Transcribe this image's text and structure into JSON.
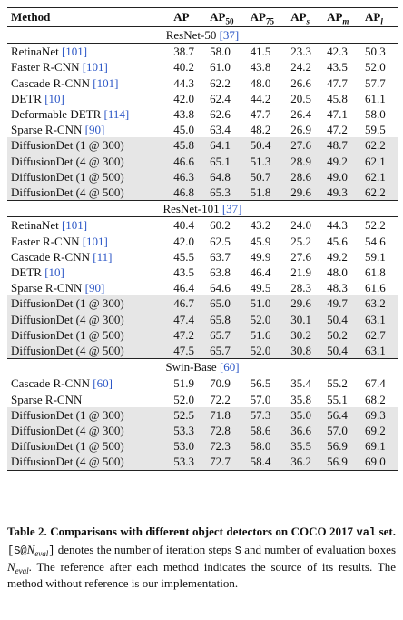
{
  "table": {
    "header": [
      {
        "text": "Method"
      },
      {
        "text": "AP"
      },
      {
        "text": "AP",
        "sub": "50"
      },
      {
        "text": "AP",
        "sub": "75"
      },
      {
        "text": "AP",
        "sub": "s"
      },
      {
        "text": "AP",
        "sub": "m"
      },
      {
        "text": "AP",
        "sub": "l"
      }
    ],
    "sections": [
      {
        "name": "ResNet-50",
        "ref": "[37]",
        "rows": [
          {
            "method": "RetinaNet",
            "ref": "[101]",
            "cells": [
              "38.7",
              "58.0",
              "41.5",
              "23.3",
              "42.3",
              "50.3"
            ]
          },
          {
            "method": "Faster R-CNN",
            "ref": "[101]",
            "cells": [
              "40.2",
              "61.0",
              "43.8",
              "24.2",
              "43.5",
              "52.0"
            ]
          },
          {
            "method": "Cascade R-CNN",
            "ref": "[101]",
            "cells": [
              "44.3",
              "62.2",
              "48.0",
              "26.6",
              "47.7",
              "57.7"
            ]
          },
          {
            "method": "DETR",
            "ref": "[10]",
            "cells": [
              "42.0",
              "62.4",
              "44.2",
              "20.5",
              "45.8",
              "61.1"
            ]
          },
          {
            "method": "Deformable DETR",
            "ref": "[114]",
            "cells": [
              "43.8",
              "62.6",
              "47.7",
              "26.4",
              "47.1",
              "58.0"
            ]
          },
          {
            "method": "Sparse R-CNN",
            "ref": "[90]",
            "cells": [
              "45.0",
              "63.4",
              "48.2",
              "26.9",
              "47.2",
              "59.5"
            ]
          },
          {
            "method": "DiffusionDet (1 @ 300)",
            "highlight": true,
            "cells": [
              "45.8",
              "64.1",
              "50.4",
              "27.6",
              "48.7",
              "62.2"
            ]
          },
          {
            "method": "DiffusionDet (4 @ 300)",
            "highlight": true,
            "cells": [
              "46.6",
              "65.1",
              "51.3",
              "28.9",
              "49.2",
              "62.1"
            ]
          },
          {
            "method": "DiffusionDet (1 @ 500)",
            "highlight": true,
            "cells": [
              "46.3",
              "64.8",
              "50.7",
              "28.6",
              "49.0",
              "62.1"
            ]
          },
          {
            "method": "DiffusionDet (4 @ 500)",
            "highlight": true,
            "cells": [
              "46.8",
              "65.3",
              "51.8",
              "29.6",
              "49.3",
              "62.2"
            ]
          }
        ]
      },
      {
        "name": "ResNet-101",
        "ref": "[37]",
        "rows": [
          {
            "method": "RetinaNet",
            "ref": "[101]",
            "cells": [
              "40.4",
              "60.2",
              "43.2",
              "24.0",
              "44.3",
              "52.2"
            ]
          },
          {
            "method": "Faster R-CNN",
            "ref": "[101]",
            "cells": [
              "42.0",
              "62.5",
              "45.9",
              "25.2",
              "45.6",
              "54.6"
            ]
          },
          {
            "method": "Cascade R-CNN",
            "ref": "[11]",
            "cells": [
              "45.5",
              "63.7",
              "49.9",
              "27.6",
              "49.2",
              "59.1"
            ]
          },
          {
            "method": "DETR",
            "ref": "[10]",
            "cells": [
              "43.5",
              "63.8",
              "46.4",
              "21.9",
              "48.0",
              "61.8"
            ]
          },
          {
            "method": "Sparse R-CNN",
            "ref": "[90]",
            "cells": [
              "46.4",
              "64.6",
              "49.5",
              "28.3",
              "48.3",
              "61.6"
            ]
          },
          {
            "method": "DiffusionDet (1 @ 300)",
            "highlight": true,
            "cells": [
              "46.7",
              "65.0",
              "51.0",
              "29.6",
              "49.7",
              "63.2"
            ]
          },
          {
            "method": "DiffusionDet (4 @ 300)",
            "highlight": true,
            "cells": [
              "47.4",
              "65.8",
              "52.0",
              "30.1",
              "50.4",
              "63.1"
            ]
          },
          {
            "method": "DiffusionDet (1 @ 500)",
            "highlight": true,
            "cells": [
              "47.2",
              "65.7",
              "51.6",
              "30.2",
              "50.2",
              "62.7"
            ]
          },
          {
            "method": "DiffusionDet (4 @ 500)",
            "highlight": true,
            "cells": [
              "47.5",
              "65.7",
              "52.0",
              "30.8",
              "50.4",
              "63.1"
            ]
          }
        ]
      },
      {
        "name": "Swin-Base",
        "ref": "[60]",
        "rows": [
          {
            "method": "Cascade R-CNN",
            "ref": "[60]",
            "cells": [
              "51.9",
              "70.9",
              "56.5",
              "35.4",
              "55.2",
              "67.4"
            ]
          },
          {
            "method": "Sparse R-CNN",
            "cells": [
              "52.0",
              "72.2",
              "57.0",
              "35.8",
              "55.1",
              "68.2"
            ]
          },
          {
            "method": "DiffusionDet (1 @ 300)",
            "highlight": true,
            "cells": [
              "52.5",
              "71.8",
              "57.3",
              "35.0",
              "56.4",
              "69.3"
            ]
          },
          {
            "method": "DiffusionDet (4 @ 300)",
            "highlight": true,
            "cells": [
              "53.3",
              "72.8",
              "58.6",
              "36.6",
              "57.0",
              "69.2"
            ]
          },
          {
            "method": "DiffusionDet (1 @ 500)",
            "highlight": true,
            "cells": [
              "53.0",
              "72.3",
              "58.0",
              "35.5",
              "56.9",
              "69.1"
            ]
          },
          {
            "method": "DiffusionDet (4 @ 500)",
            "highlight": true,
            "cells": [
              "53.3",
              "72.7",
              "58.4",
              "36.2",
              "56.9",
              "69.0"
            ]
          }
        ]
      }
    ]
  },
  "caption": [
    "Table 2.",
    " Comparisons with different object detectors on COCO 2017 ",
    "val",
    " set.",
    " [S@",
    "N",
    "eval",
    "]",
    " denotes the number of iteration steps ",
    "S",
    " and number of evaluation boxes ",
    "N",
    "eval",
    ". The reference after each method indicates the source of its results. The method without reference is our implementation."
  ]
}
